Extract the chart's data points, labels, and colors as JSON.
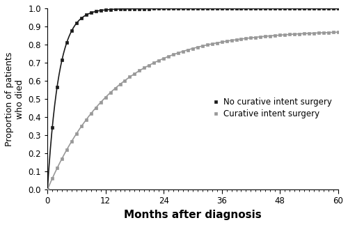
{
  "title": "",
  "xlabel": "Months after diagnosis",
  "ylabel": "Proportion of patients\nwho died",
  "xlim": [
    0,
    60
  ],
  "ylim": [
    0,
    1.0
  ],
  "xticks": [
    0,
    12,
    24,
    36,
    48,
    60
  ],
  "yticks": [
    0,
    0.1,
    0.2,
    0.3,
    0.4,
    0.5,
    0.6,
    0.7,
    0.8,
    0.9,
    1.0
  ],
  "legend_labels": [
    "No curative intent surgery",
    "Curative intent surgery"
  ],
  "no_surgery_color": "#1a1a1a",
  "surgery_color": "#999999",
  "background_color": "#ffffff",
  "no_surgery_params": {
    "k": 0.42,
    "max_val": 0.998
  },
  "surgery_params": {
    "k": 0.072,
    "max_val": 0.88
  },
  "marker_interval": 1,
  "marker_style": "s",
  "marker_size": 2.8,
  "linewidth": 1.2,
  "xlabel_fontsize": 11,
  "ylabel_fontsize": 9,
  "tick_fontsize": 8.5,
  "legend_fontsize": 8.5
}
